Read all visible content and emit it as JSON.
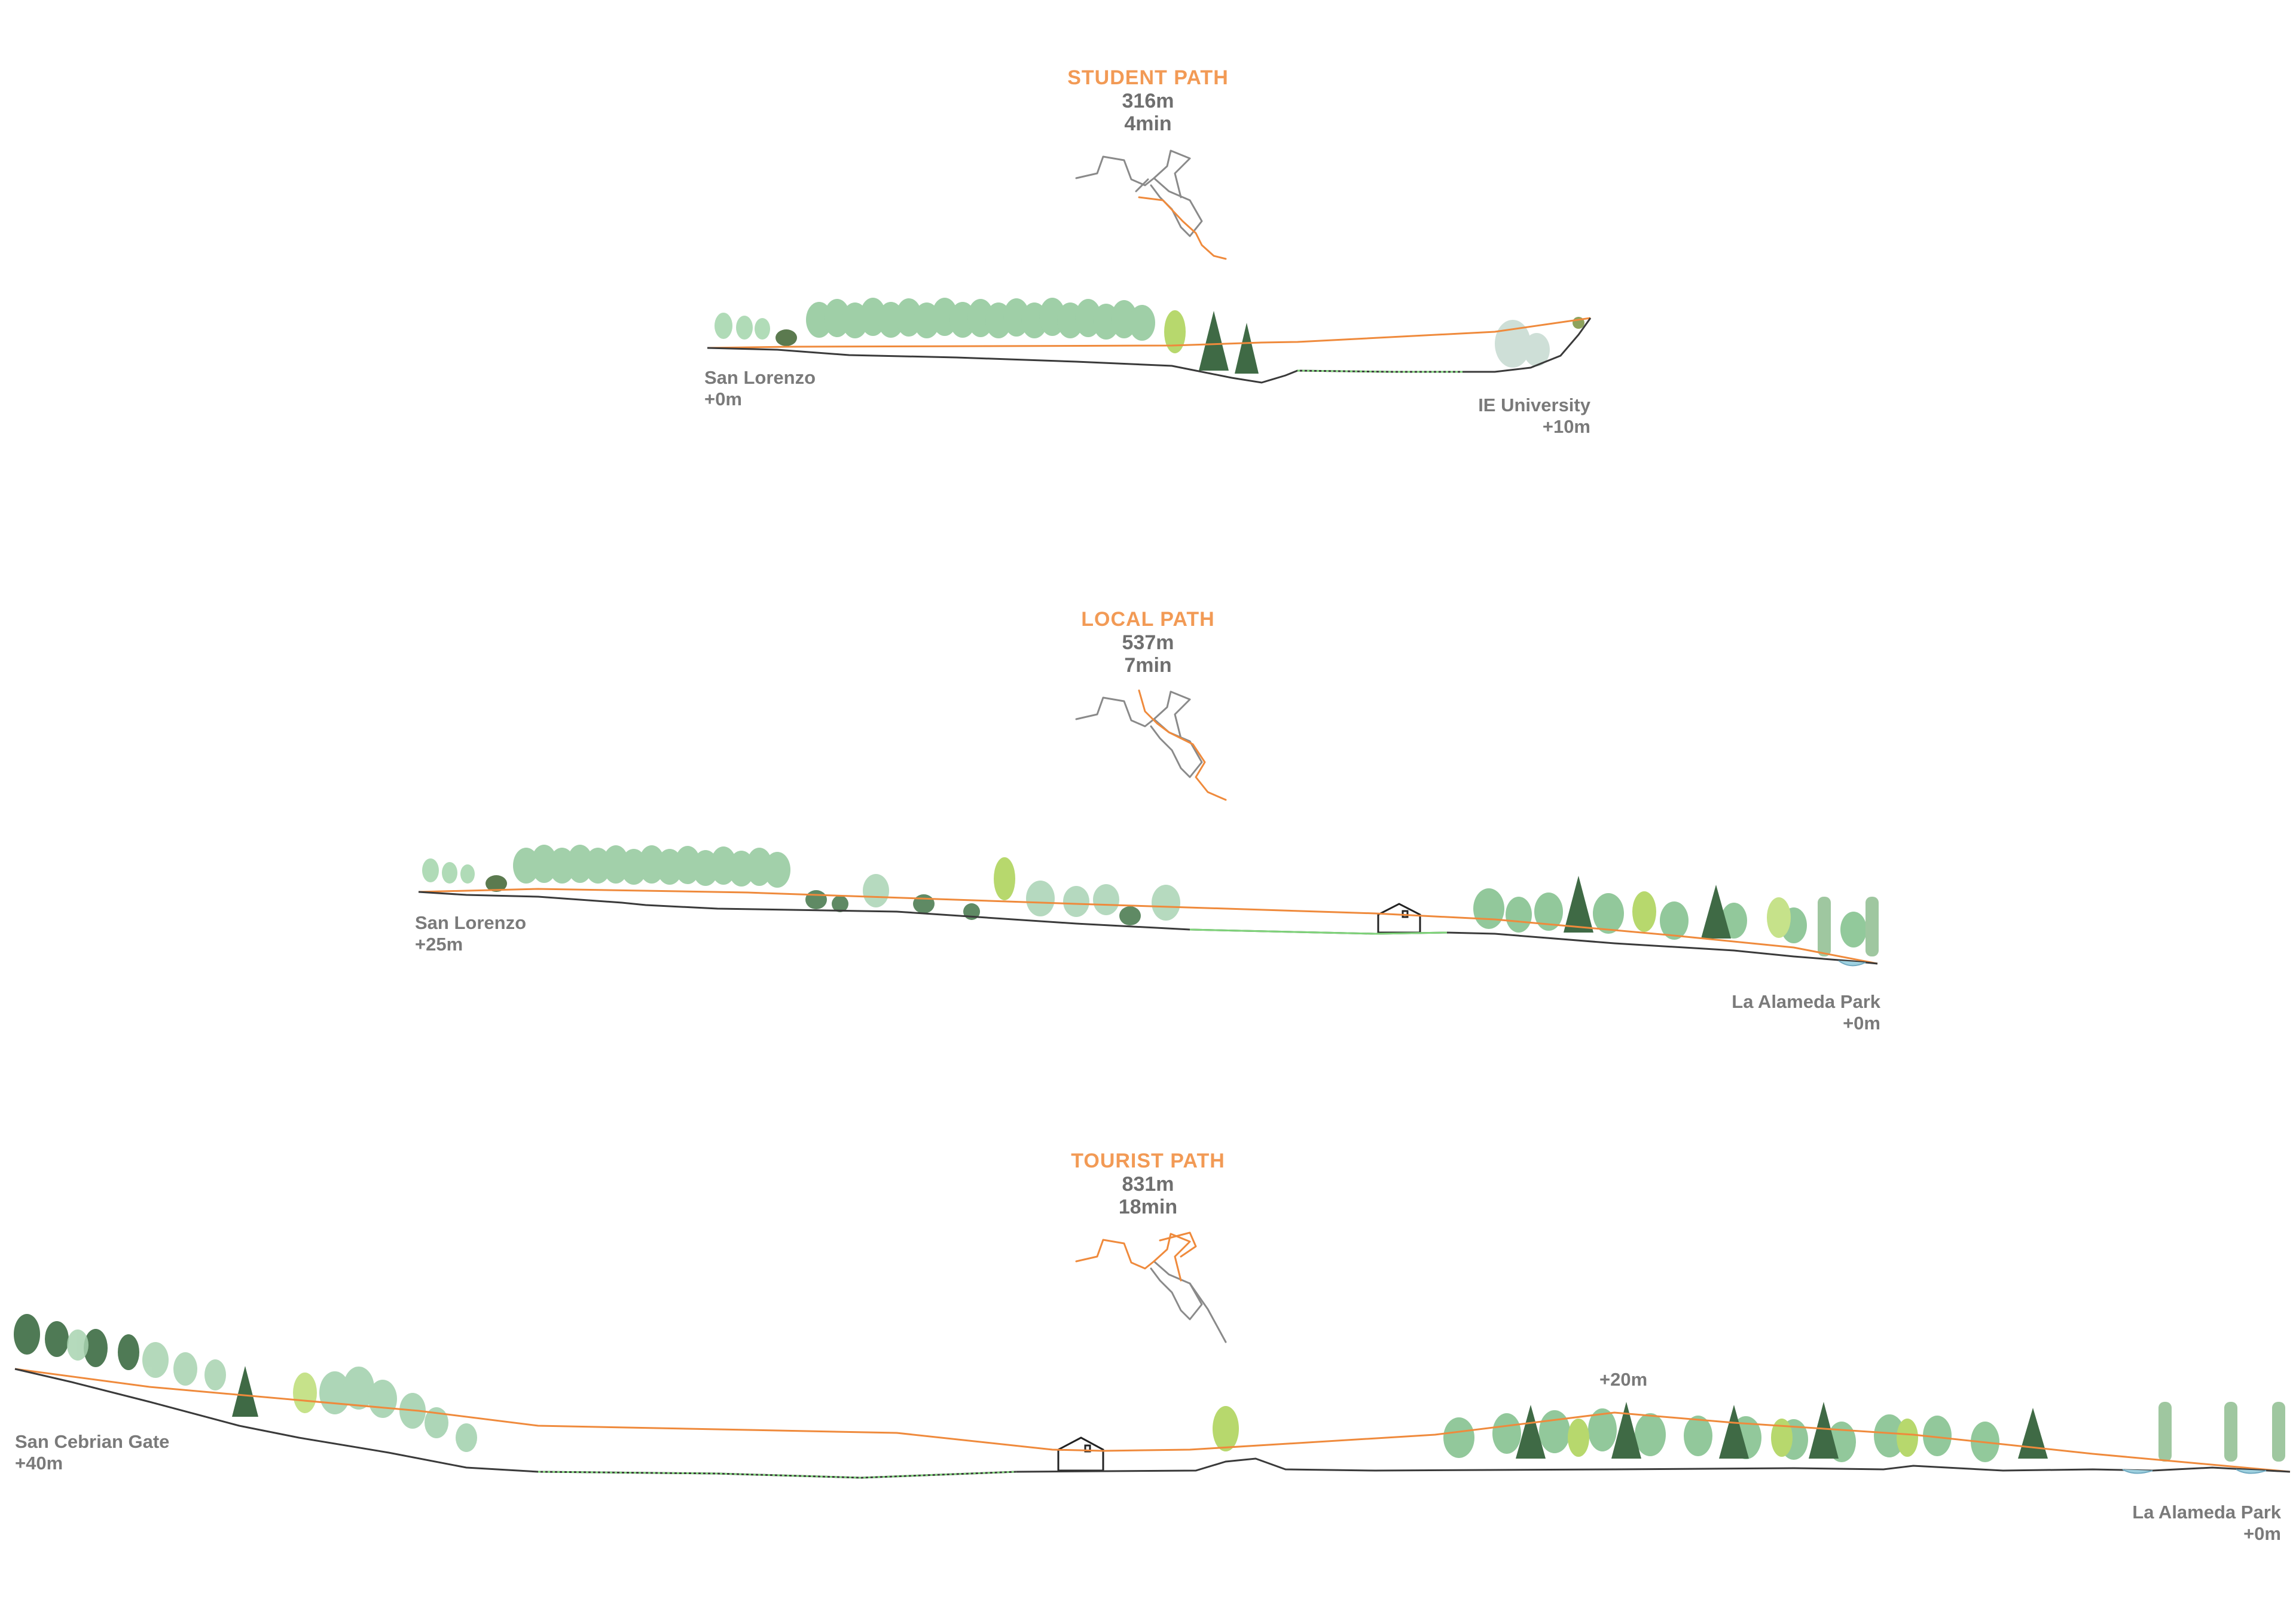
{
  "colors": {
    "accent": "#f29a55",
    "path_line": "#ef8a3c",
    "text_gray": "#7a7a7a",
    "terrain": "#3a3a3a",
    "grass": "#7fd37a",
    "water": "#9fd1e0"
  },
  "sections": [
    {
      "id": "student",
      "title": "STUDENT PATH",
      "distance": "316m",
      "time": "4min",
      "start_name": "San Lorenzo",
      "start_elev": "+0m",
      "end_name": "IE University",
      "end_elev": "+10m"
    },
    {
      "id": "local",
      "title": "LOCAL PATH",
      "distance": "537m",
      "time": "7min",
      "start_name": "San Lorenzo",
      "start_elev": "+25m",
      "end_name": "La Alameda Park",
      "end_elev": "+0m"
    },
    {
      "id": "tourist",
      "title": "TOURIST PATH",
      "distance": "831m",
      "time": "18min",
      "start_name": "San Cebrian Gate",
      "start_elev": "+40m",
      "end_name": "La Alameda Park",
      "end_elev": "+0m",
      "mid_elev": "+20m"
    }
  ]
}
